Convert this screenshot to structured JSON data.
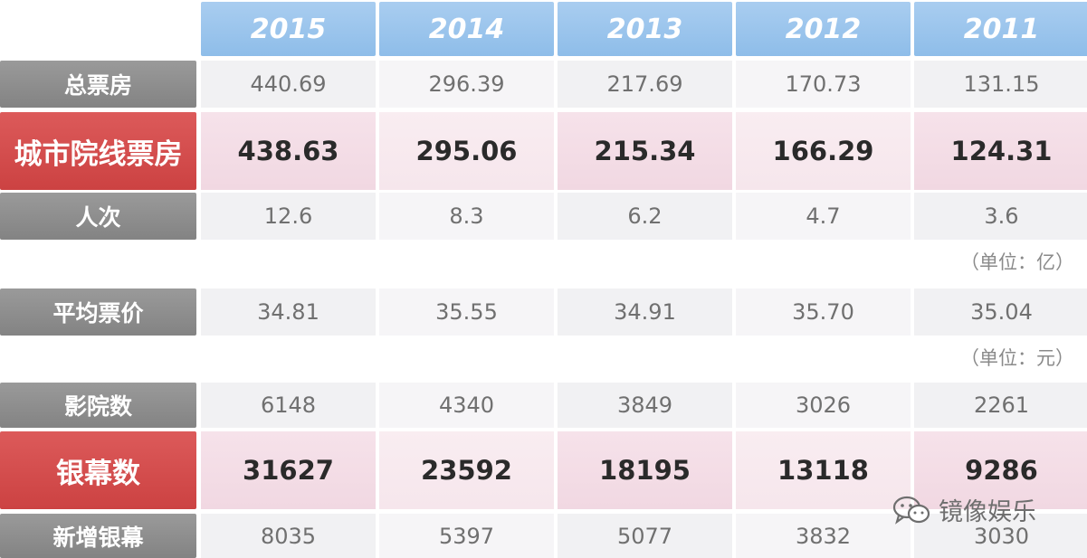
{
  "years": [
    "2015",
    "2014",
    "2013",
    "2012",
    "2011"
  ],
  "rows": [
    {
      "label": "总票房",
      "values": [
        "440.69",
        "296.39",
        "217.69",
        "170.73",
        "131.15"
      ],
      "highlight": false
    },
    {
      "label": "城市院线票房",
      "values": [
        "438.63",
        "295.06",
        "215.34",
        "166.29",
        "124.31"
      ],
      "highlight": true
    },
    {
      "label": "人次",
      "values": [
        "12.6",
        "8.3",
        "6.2",
        "4.7",
        "3.6"
      ],
      "highlight": false
    },
    {
      "label": "平均票价",
      "values": [
        "34.81",
        "35.55",
        "34.91",
        "35.70",
        "35.04"
      ],
      "highlight": false
    },
    {
      "label": "影院数",
      "values": [
        "6148",
        "4340",
        "3849",
        "3026",
        "2261"
      ],
      "highlight": false
    },
    {
      "label": "银幕数",
      "values": [
        "31627",
        "23592",
        "18195",
        "13118",
        "9286"
      ],
      "highlight": true
    },
    {
      "label": "新增银幕",
      "values": [
        "8035",
        "5397",
        "5077",
        "3832",
        "3030"
      ],
      "highlight": false
    }
  ],
  "units": [
    "（单位：亿）",
    "（单位：元）"
  ],
  "watermark": {
    "text": "镜像娱乐",
    "icon": "wechat-icon"
  },
  "colors": {
    "year_header": "#8ebde9",
    "label_gray": "#8c8c8c",
    "label_red": "#d24b4b",
    "highlight_bg": "#f6e6ec",
    "normal_bg": "#f1f1f3"
  }
}
